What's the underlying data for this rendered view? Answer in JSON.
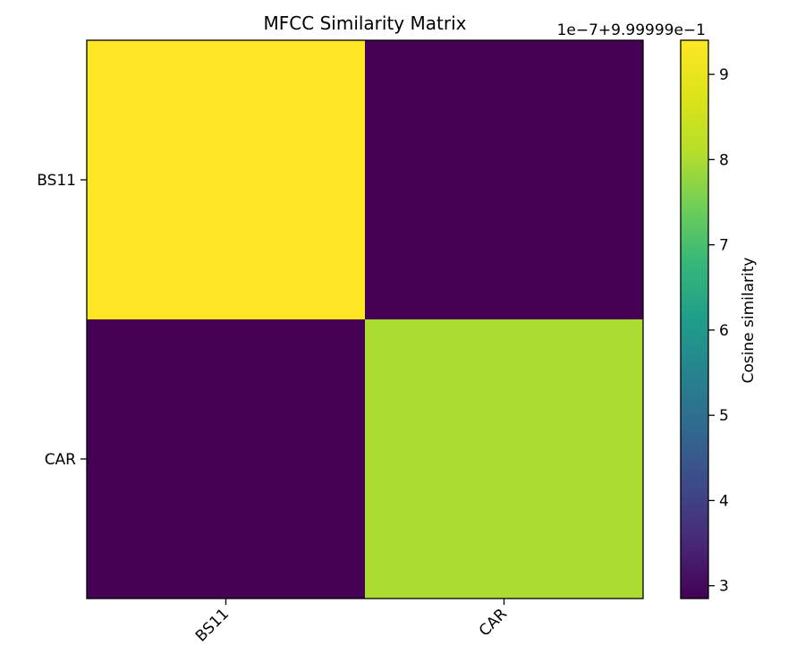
{
  "chart_data": {
    "type": "heatmap",
    "title": "MFCC Similarity Matrix",
    "row_labels": [
      "BS11",
      "CAR"
    ],
    "col_labels": [
      "BS11",
      "CAR"
    ],
    "values": [
      [
        9.4,
        2.85
      ],
      [
        2.85,
        8.0
      ]
    ],
    "colorbar": {
      "label": "Cosine similarity",
      "offset_text": "1e−7+9.99999e−1",
      "ticks": [
        "3",
        "4",
        "5",
        "6",
        "7",
        "8",
        "9"
      ],
      "range": [
        2.85,
        9.4
      ],
      "colormap": "viridis"
    },
    "grid": false
  }
}
